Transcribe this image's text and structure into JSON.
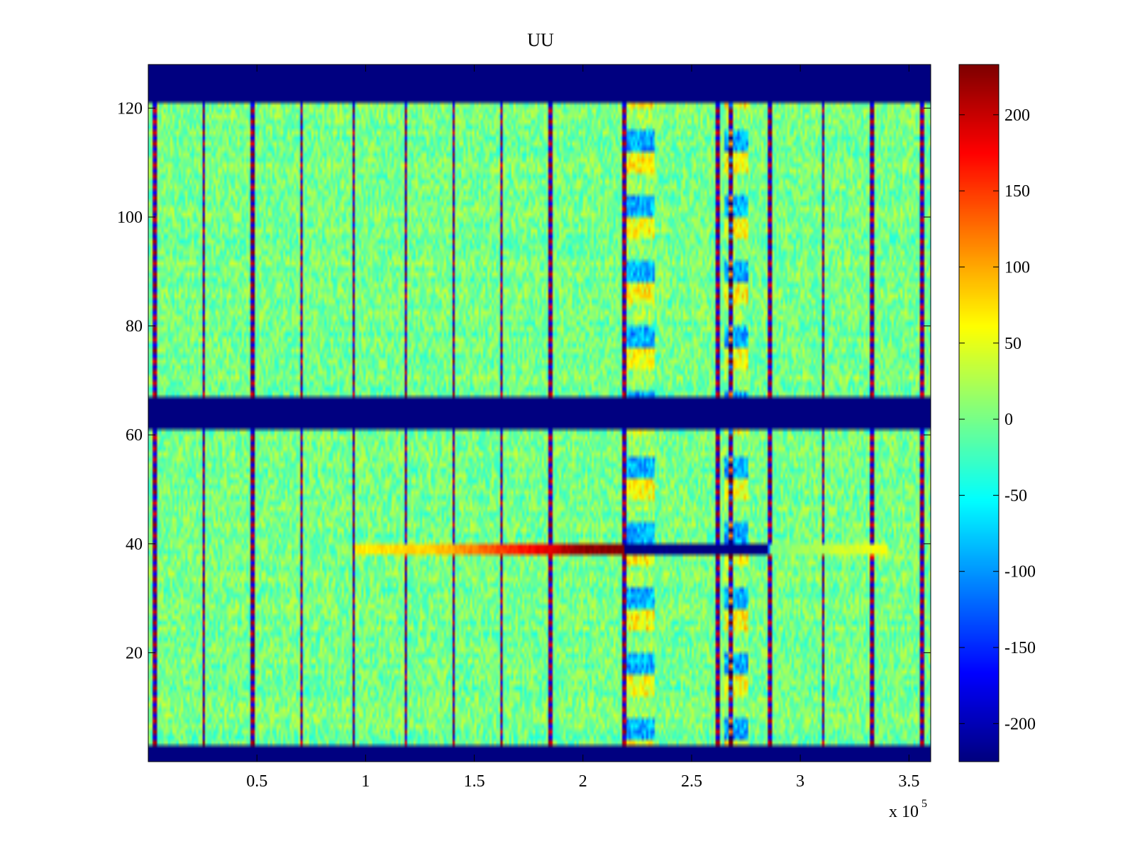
{
  "chart_data": [
    {
      "type": "heatmap",
      "title": "UU",
      "xlabel": "",
      "ylabel": "",
      "x_multiplier_label": {
        "base": "x 10",
        "exponent": "5"
      },
      "xlim": [
        0,
        360000
      ],
      "ylim": [
        0,
        128
      ],
      "x_ticks": [
        50000,
        100000,
        150000,
        200000,
        250000,
        300000,
        350000
      ],
      "x_tick_labels": [
        "0.5",
        "1",
        "1.5",
        "2",
        "2.5",
        "3",
        "3.5"
      ],
      "y_ticks": [
        20,
        40,
        60,
        80,
        100,
        120
      ],
      "y_tick_labels": [
        "20",
        "40",
        "60",
        "80",
        "100",
        "120"
      ],
      "colormap": "jet",
      "clim": [
        -225,
        233
      ],
      "grid": false,
      "background_value": 0,
      "masked_bands": [
        {
          "y_from": 121,
          "y_to": 128,
          "value": -225
        },
        {
          "y_from": 61,
          "y_to": 67,
          "value": -225
        },
        {
          "y_from": 0,
          "y_to": 3,
          "value": -225
        }
      ],
      "vertical_stripes_x": [
        3000,
        25500,
        48000,
        70500,
        94500,
        118500,
        140500,
        162500,
        185000,
        219000,
        262000,
        268000,
        286000,
        310500,
        333000,
        356000
      ],
      "active_regions": [
        {
          "x_from": 220000,
          "x_to": 233000,
          "y_from": 3,
          "y_to": 121
        },
        {
          "x_from": 265000,
          "x_to": 276000,
          "y_from": 3,
          "y_to": 121
        }
      ],
      "horizontal_feature": {
        "y": 39,
        "points": [
          {
            "x": 95000,
            "value": 70
          },
          {
            "x": 130000,
            "value": 80
          },
          {
            "x": 160000,
            "value": 140
          },
          {
            "x": 200000,
            "value": 225
          },
          {
            "x": 219000,
            "value": 233
          },
          {
            "x": 219500,
            "value": -225
          },
          {
            "x": 285000,
            "value": -225
          },
          {
            "x": 286000,
            "value": 0
          },
          {
            "x": 340000,
            "value": 60
          }
        ]
      },
      "colorbar": {
        "ticks": [
          -200,
          -150,
          -100,
          -50,
          0,
          50,
          100,
          150,
          200
        ],
        "tick_labels": [
          "-200",
          "-150",
          "-100",
          "-50",
          "0",
          "50",
          "100",
          "150",
          "200"
        ],
        "min": -225,
        "max": 233
      }
    }
  ]
}
